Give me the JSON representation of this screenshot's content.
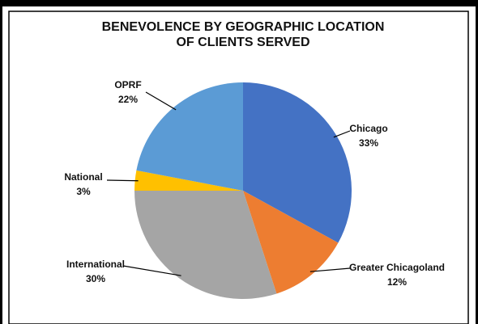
{
  "chart_data": {
    "type": "pie",
    "title": "BENEVOLENCE BY GEOGRAPHIC LOCATION",
    "subtitle": "OF CLIENTS SERVED",
    "categories": [
      "Chicago",
      "Greater Chicagoland",
      "International",
      "National",
      "OPRF"
    ],
    "values": [
      33,
      12,
      30,
      3,
      22
    ],
    "value_labels": [
      "33%",
      "12%",
      "30%",
      "3%",
      "22%"
    ],
    "colors": [
      "#4472c4",
      "#ed7d31",
      "#a5a5a5",
      "#ffc000",
      "#5b9bd5"
    ]
  }
}
